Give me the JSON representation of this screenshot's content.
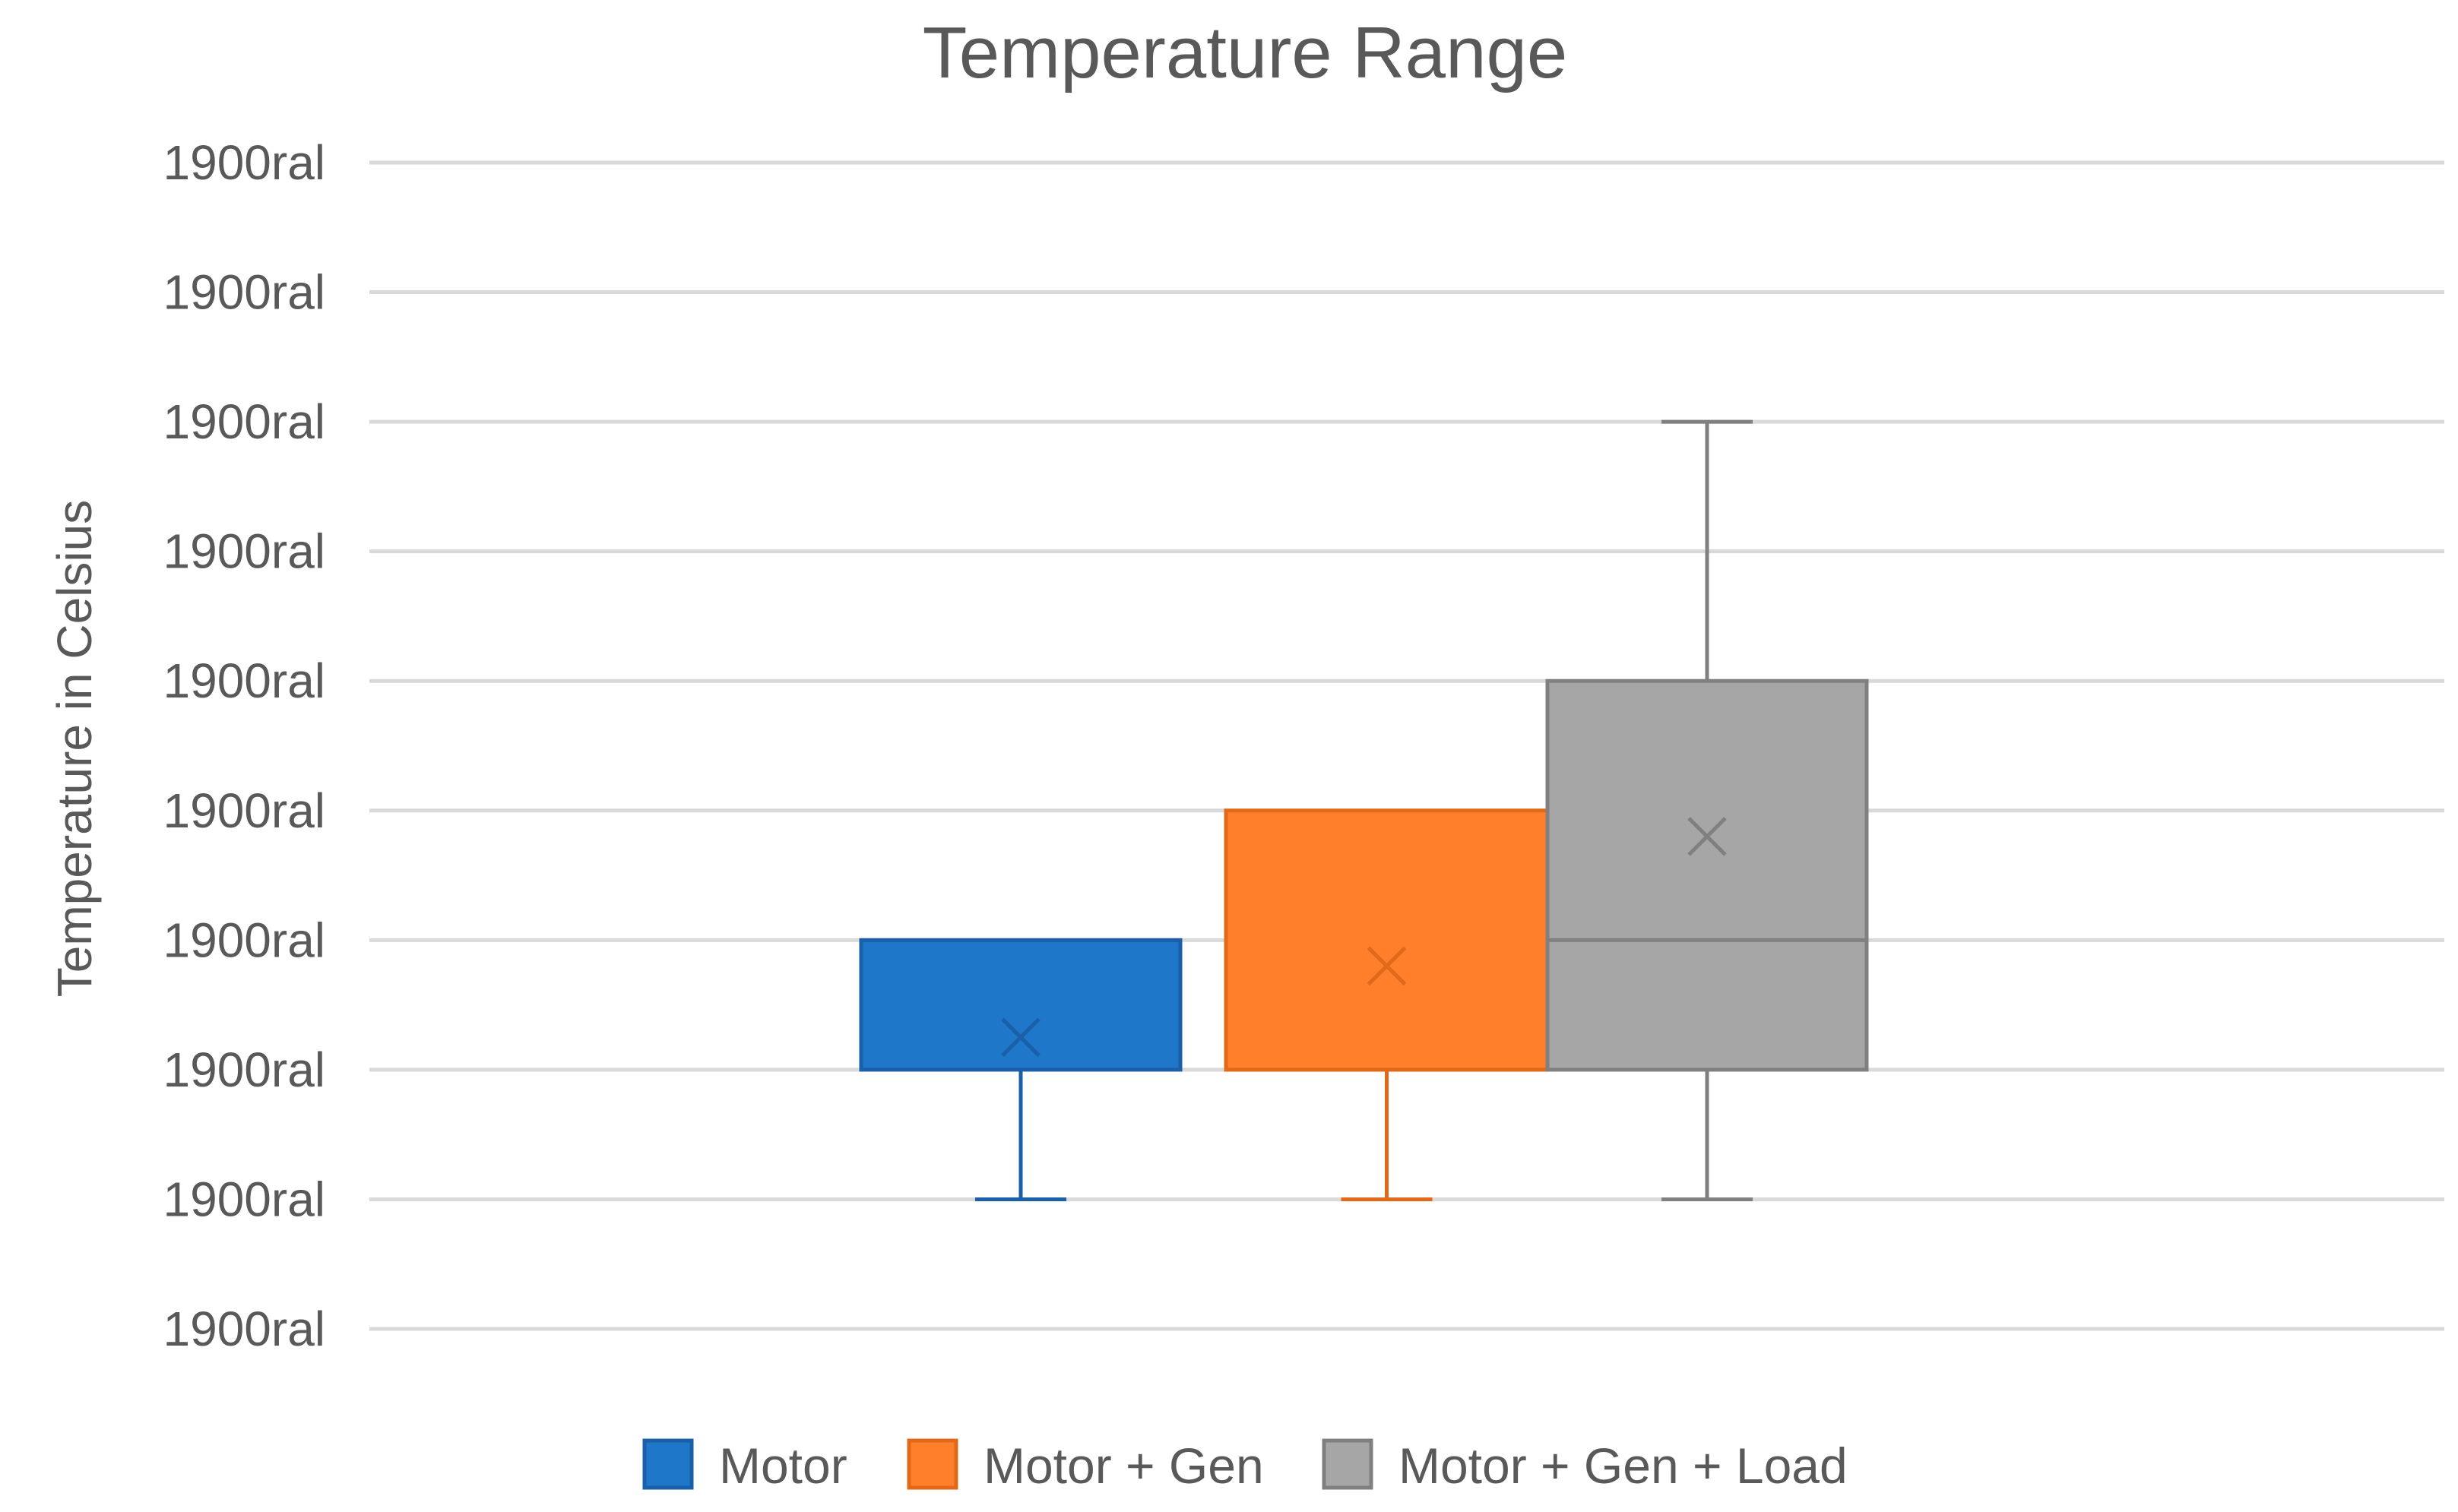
{
  "chart_data": {
    "type": "box",
    "title": "Temperature Range",
    "xlabel": "",
    "ylabel": "Temperature in Celsius",
    "ylim": [
      0,
      9
    ],
    "y_tick_values": [
      0,
      1,
      2,
      3,
      4,
      5,
      6,
      7,
      8,
      9
    ],
    "y_tick_labels": [
      "1900ral",
      "1900ral",
      "1900ral",
      "1900ral",
      "1900ral",
      "1900ral",
      "1900ral",
      "1900ral",
      "1900ral",
      "1900ral"
    ],
    "grid": true,
    "legend_position": "bottom",
    "series": [
      {
        "name": "Motor",
        "color": "#1f77c9",
        "edge_color": "#1a5fa8",
        "min": 1,
        "q1": 2,
        "median": 3,
        "q3": 3,
        "max": 3,
        "mean": 2.25
      },
      {
        "name": "Motor + Gen",
        "color": "#ff7f2a",
        "edge_color": "#e06a1a",
        "min": 1,
        "q1": 2,
        "median": 2,
        "q3": 4,
        "max": 4,
        "mean": 2.8
      },
      {
        "name": "Motor + Gen + Load",
        "color": "#a6a6a6",
        "edge_color": "#808080",
        "min": 1,
        "q1": 2,
        "median": 3,
        "q3": 5,
        "max": 7,
        "mean": 3.8
      }
    ]
  }
}
